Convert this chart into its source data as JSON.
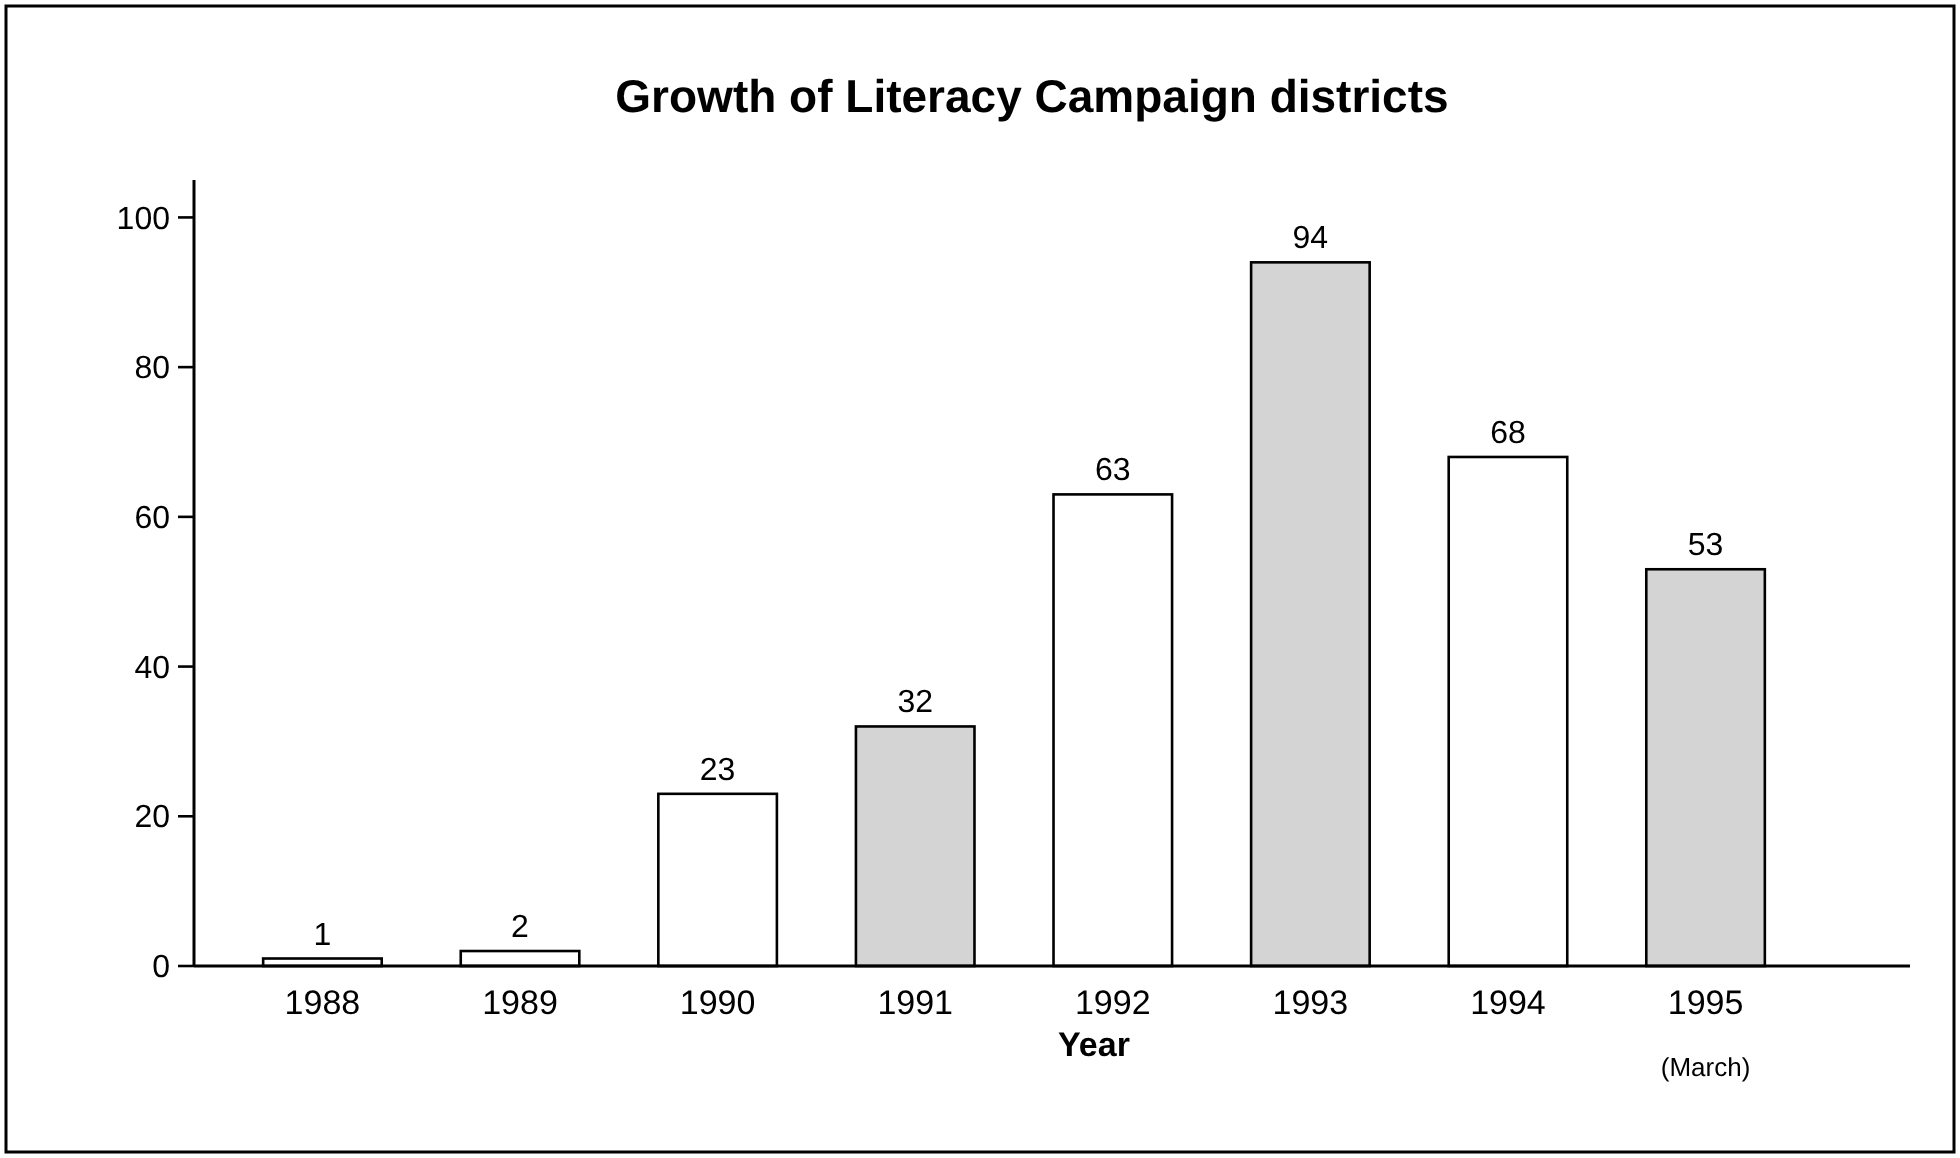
{
  "chart_data": {
    "type": "bar",
    "title": "Growth of Literacy Campaign districts",
    "xlabel": "Year",
    "categories": [
      "1988",
      "1989",
      "1990",
      "1991",
      "1992",
      "1993",
      "1994",
      "1995 (March)"
    ],
    "values": [
      1,
      2,
      23,
      32,
      63,
      94,
      68,
      53
    ],
    "colors": [
      "#ffffff",
      "#ffffff",
      "#ffffff",
      "#d4d4d4",
      "#ffffff",
      "#d4d4d4",
      "#ffffff",
      "#d4d4d4"
    ],
    "ylim": [
      0,
      105
    ],
    "yticks": [
      0,
      20,
      40,
      60,
      80,
      100
    ],
    "data_labels": true,
    "grid": false
  }
}
